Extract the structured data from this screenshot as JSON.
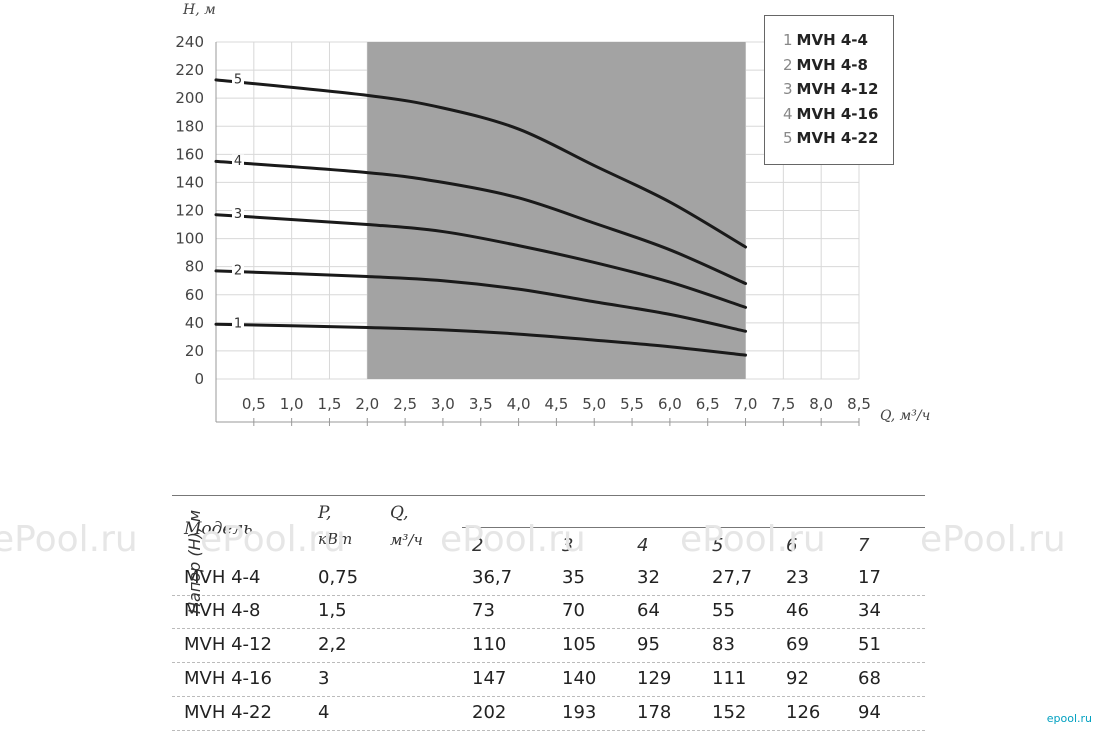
{
  "chart_data": {
    "type": "line",
    "xlabel": "Q, м³/ч",
    "ylabel": "H, м",
    "xlim": [
      0,
      8.5
    ],
    "ylim": [
      0,
      240
    ],
    "x_ticks": [
      "0,5",
      "1,0",
      "1,5",
      "2,0",
      "2,5",
      "3,0",
      "3,5",
      "4,0",
      "4,5",
      "5,0",
      "5,5",
      "6,0",
      "6,5",
      "7,0",
      "7,5",
      "8,0",
      "8,5"
    ],
    "y_ticks": [
      "0",
      "20",
      "40",
      "60",
      "80",
      "100",
      "120",
      "140",
      "160",
      "180",
      "200",
      "220",
      "240"
    ],
    "shaded_range": [
      2.0,
      7.0
    ],
    "grid": true,
    "legend_position": "top-right",
    "series": [
      {
        "name": "MVH 4-4",
        "label": "1",
        "x": [
          0,
          2,
          3,
          4,
          5,
          6,
          7
        ],
        "y": [
          39,
          36.7,
          35,
          32,
          27.7,
          23,
          17
        ]
      },
      {
        "name": "MVH 4-8",
        "label": "2",
        "x": [
          0,
          2,
          3,
          4,
          5,
          6,
          7
        ],
        "y": [
          77,
          73,
          70,
          64,
          55,
          46,
          34
        ]
      },
      {
        "name": "MVH 4-12",
        "label": "3",
        "x": [
          0,
          2,
          3,
          4,
          5,
          6,
          7
        ],
        "y": [
          117,
          110,
          105,
          95,
          83,
          69,
          51
        ]
      },
      {
        "name": "MVH 4-16",
        "label": "4",
        "x": [
          0,
          2,
          3,
          4,
          5,
          6,
          7
        ],
        "y": [
          155,
          147,
          140,
          129,
          111,
          92,
          68
        ]
      },
      {
        "name": "MVH 4-22",
        "label": "5",
        "x": [
          0,
          2,
          3,
          4,
          5,
          6,
          7
        ],
        "y": [
          213,
          202,
          193,
          178,
          152,
          126,
          94
        ]
      }
    ]
  },
  "legend": [
    {
      "num": "1",
      "name": "MVH 4-4"
    },
    {
      "num": "2",
      "name": "MVH 4-8"
    },
    {
      "num": "3",
      "name": "MVH 4-12"
    },
    {
      "num": "4",
      "name": "MVH 4-16"
    },
    {
      "num": "5",
      "name": "MVH 4-22"
    }
  ],
  "table": {
    "header_model": "Модель",
    "header_power": "P,\nкВт",
    "header_flow": "Q,\nм³/ч",
    "header_head": "Напор (H), м",
    "flow_points": [
      "2",
      "3",
      "4",
      "5",
      "6",
      "7"
    ],
    "rows": [
      {
        "model": "MVH 4-4",
        "power": "0,75",
        "values": [
          "36,7",
          "35",
          "32",
          "27,7",
          "23",
          "17"
        ]
      },
      {
        "model": "MVH 4-8",
        "power": "1,5",
        "values": [
          "73",
          "70",
          "64",
          "55",
          "46",
          "34"
        ]
      },
      {
        "model": "MVH 4-12",
        "power": "2,2",
        "values": [
          "110",
          "105",
          "95",
          "83",
          "69",
          "51"
        ]
      },
      {
        "model": "MVH 4-16",
        "power": "3",
        "values": [
          "147",
          "140",
          "129",
          "111",
          "92",
          "68"
        ]
      },
      {
        "model": "MVH 4-22",
        "power": "4",
        "values": [
          "202",
          "193",
          "178",
          "152",
          "126",
          "94"
        ]
      }
    ]
  },
  "watermark": "ePool.ru",
  "watermark_logo": "epool.ru",
  "colors": {
    "shade": "#a3a3a3",
    "curve": "#1a1a1a",
    "grid": "#d8d8d8"
  }
}
